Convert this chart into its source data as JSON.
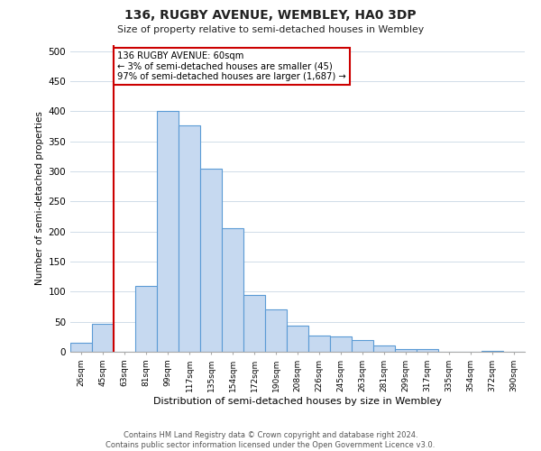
{
  "title": "136, RUGBY AVENUE, WEMBLEY, HA0 3DP",
  "subtitle": "Size of property relative to semi-detached houses in Wembley",
  "xlabel": "Distribution of semi-detached houses by size in Wembley",
  "ylabel": "Number of semi-detached properties",
  "bin_labels": [
    "26sqm",
    "45sqm",
    "63sqm",
    "81sqm",
    "99sqm",
    "117sqm",
    "135sqm",
    "154sqm",
    "172sqm",
    "190sqm",
    "208sqm",
    "226sqm",
    "245sqm",
    "263sqm",
    "281sqm",
    "299sqm",
    "317sqm",
    "335sqm",
    "354sqm",
    "372sqm",
    "390sqm"
  ],
  "bar_heights": [
    15,
    47,
    0,
    109,
    400,
    376,
    304,
    205,
    95,
    70,
    44,
    27,
    25,
    19,
    10,
    5,
    4,
    0,
    0,
    2,
    0
  ],
  "bar_color": "#c6d9f0",
  "bar_edge_color": "#5b9bd5",
  "property_line_color": "#cc0000",
  "annotation_line1": "136 RUGBY AVENUE: 60sqm",
  "annotation_line2": "← 3% of semi-detached houses are smaller (45)",
  "annotation_line3": "97% of semi-detached houses are larger (1,687) →",
  "annotation_box_color": "#ffffff",
  "annotation_box_edge_color": "#cc0000",
  "ylim": [
    0,
    510
  ],
  "yticks": [
    0,
    50,
    100,
    150,
    200,
    250,
    300,
    350,
    400,
    450,
    500
  ],
  "footer_line1": "Contains HM Land Registry data © Crown copyright and database right 2024.",
  "footer_line2": "Contains public sector information licensed under the Open Government Licence v3.0.",
  "background_color": "#ffffff",
  "grid_color": "#d0dce8"
}
